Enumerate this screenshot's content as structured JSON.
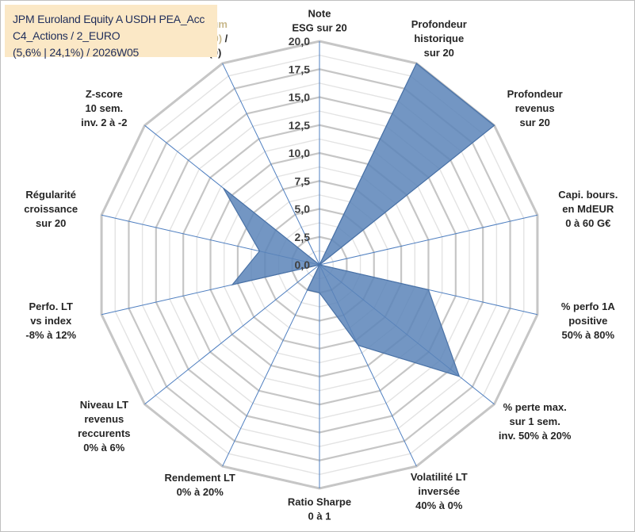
{
  "chart_data": {
    "type": "radar",
    "title_lines": [
      "JPM Euroland Equity A USDH PEA_Acc",
      "C4_Actions / 2_EURO",
      "(5,6% | 24,1%) / 2026W05"
    ],
    "rmin": 0,
    "rmax": 20,
    "ticks": [
      "0,0",
      "2,5",
      "5,0",
      "7,5",
      "10,0",
      "12,5",
      "15,0",
      "17,5",
      "20,0"
    ],
    "grid": true,
    "fill_color": "#5b84b8",
    "categories": [
      {
        "lines": [
          "Note",
          "ESG sur 20"
        ]
      },
      {
        "lines": [
          "Profondeur",
          "historique",
          "sur 20"
        ]
      },
      {
        "lines": [
          "Profondeur",
          "revenus",
          "sur 20"
        ]
      },
      {
        "lines": [
          "Capi. bours.",
          "en MdEUR",
          "0 à 60 G€"
        ]
      },
      {
        "lines": [
          "% perfo 1A",
          "positive",
          "50% à 80%"
        ]
      },
      {
        "lines": [
          "% perte max.",
          "sur 1 sem.",
          "inv. 50% à 20%"
        ]
      },
      {
        "lines": [
          "Volatilité LT",
          "inversée",
          "40% à 0%"
        ]
      },
      {
        "lines": [
          "Ratio Sharpe",
          "0 à 1"
        ]
      },
      {
        "lines": [
          "Rendement LT",
          "0% à 20%"
        ]
      },
      {
        "lines": [
          "Niveau LT",
          "revenus",
          "reccurents",
          "0% à 6%"
        ]
      },
      {
        "lines": [
          "Perfo. LT",
          "vs index",
          "-8% à 12%"
        ]
      },
      {
        "lines": [
          "Régularité",
          "croissance",
          "sur 20"
        ]
      },
      {
        "lines": [
          "Z-score",
          "10 sem.",
          "inv. 2 à -2"
        ]
      },
      {
        "highlight": [
          "Momentum",
          "Achat (20)"
        ],
        "highlight_suffix": " /",
        "lines": [
          "Vente (0)"
        ]
      }
    ],
    "values": [
      0,
      20,
      20,
      0,
      10,
      16,
      8,
      2.5,
      2.5,
      0,
      8,
      5.5,
      11,
      0
    ]
  }
}
